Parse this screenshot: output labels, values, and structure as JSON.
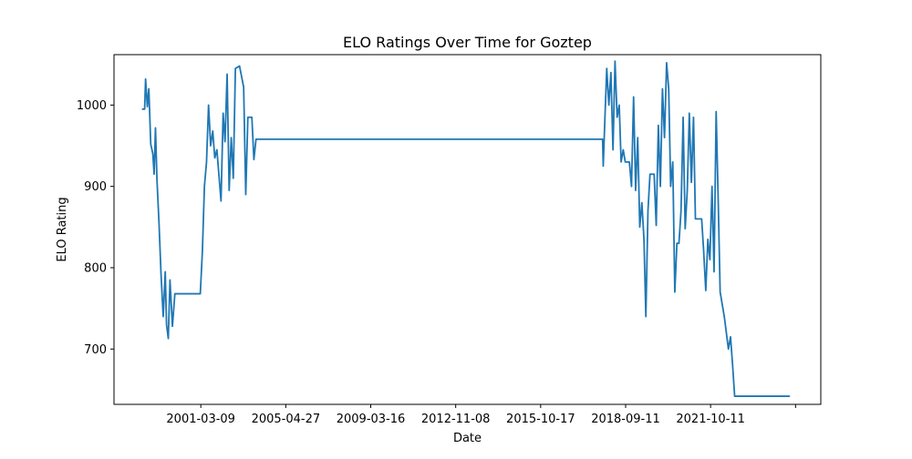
{
  "chart_data": {
    "type": "line",
    "title": "ELO Ratings Over Time for Goztep",
    "xlabel": "Date",
    "ylabel": "ELO Rating",
    "x_ticks": [
      "2001-03-09",
      "2005-04-27",
      "2009-03-16",
      "2012-11-08",
      "2015-10-17",
      "2018-09-11",
      "2021-10-11",
      ""
    ],
    "y_ticks": [
      "700",
      "800",
      "900",
      "1000"
    ],
    "xlim": [
      "1997-09-05",
      "2026-03-25"
    ],
    "ylim": [
      632,
      1062
    ],
    "grid": false,
    "series": [
      {
        "color": "#1f77b4",
        "points": [
          [
            "1998-11-01",
            995
          ],
          [
            "1998-12-01",
            995
          ],
          [
            "1998-12-15",
            1032
          ],
          [
            "1999-01-10",
            998
          ],
          [
            "1999-02-01",
            1020
          ],
          [
            "1999-03-01",
            952
          ],
          [
            "1999-04-01",
            940
          ],
          [
            "1999-04-20",
            915
          ],
          [
            "1999-05-10",
            972
          ],
          [
            "1999-06-01",
            908
          ],
          [
            "1999-07-01",
            855
          ],
          [
            "1999-08-01",
            790
          ],
          [
            "1999-09-01",
            740
          ],
          [
            "1999-10-01",
            795
          ],
          [
            "1999-10-20",
            730
          ],
          [
            "1999-11-15",
            713
          ],
          [
            "1999-12-10",
            785
          ],
          [
            "2000-01-15",
            728
          ],
          [
            "2000-02-20",
            768
          ],
          [
            "2001-01-01",
            768
          ],
          [
            "2001-03-01",
            768
          ],
          [
            "2001-04-01",
            820
          ],
          [
            "2001-05-01",
            900
          ],
          [
            "2001-06-01",
            930
          ],
          [
            "2001-07-01",
            1000
          ],
          [
            "2001-08-01",
            950
          ],
          [
            "2001-09-01",
            968
          ],
          [
            "2001-10-01",
            935
          ],
          [
            "2001-11-01",
            945
          ],
          [
            "2002-01-01",
            882
          ],
          [
            "2002-02-01",
            990
          ],
          [
            "2002-03-01",
            955
          ],
          [
            "2002-04-01",
            1038
          ],
          [
            "2002-05-01",
            895
          ],
          [
            "2002-06-01",
            960
          ],
          [
            "2002-07-01",
            910
          ],
          [
            "2002-08-01",
            1045
          ],
          [
            "2002-10-01",
            1048
          ],
          [
            "2002-12-01",
            1022
          ],
          [
            "2003-01-01",
            890
          ],
          [
            "2003-02-01",
            985
          ],
          [
            "2003-04-01",
            985
          ],
          [
            "2003-05-01",
            933
          ],
          [
            "2003-06-01",
            958
          ],
          [
            "2017-06-01",
            958
          ],
          [
            "2017-06-10",
            925
          ],
          [
            "2017-07-01",
            975
          ],
          [
            "2017-08-01",
            1045
          ],
          [
            "2017-09-01",
            1000
          ],
          [
            "2017-10-01",
            1040
          ],
          [
            "2017-11-01",
            945
          ],
          [
            "2017-12-01",
            1054
          ],
          [
            "2018-01-01",
            985
          ],
          [
            "2018-02-01",
            1000
          ],
          [
            "2018-03-01",
            930
          ],
          [
            "2018-04-01",
            945
          ],
          [
            "2018-05-01",
            930
          ],
          [
            "2018-06-01",
            930
          ],
          [
            "2018-07-01",
            930
          ],
          [
            "2018-08-01",
            900
          ],
          [
            "2018-09-01",
            1010
          ],
          [
            "2018-10-01",
            895
          ],
          [
            "2018-11-01",
            960
          ],
          [
            "2018-12-01",
            850
          ],
          [
            "2019-01-01",
            880
          ],
          [
            "2019-02-01",
            835
          ],
          [
            "2019-03-01",
            740
          ],
          [
            "2019-04-01",
            870
          ],
          [
            "2019-05-01",
            915
          ],
          [
            "2019-07-01",
            915
          ],
          [
            "2019-08-01",
            852
          ],
          [
            "2019-09-01",
            975
          ],
          [
            "2019-10-01",
            900
          ],
          [
            "2019-11-01",
            1020
          ],
          [
            "2019-12-01",
            960
          ],
          [
            "2020-01-01",
            1052
          ],
          [
            "2020-02-01",
            1020
          ],
          [
            "2020-03-01",
            900
          ],
          [
            "2020-04-01",
            930
          ],
          [
            "2020-05-01",
            770
          ],
          [
            "2020-06-01",
            830
          ],
          [
            "2020-07-01",
            830
          ],
          [
            "2020-08-01",
            870
          ],
          [
            "2020-09-01",
            985
          ],
          [
            "2020-10-01",
            848
          ],
          [
            "2020-11-01",
            895
          ],
          [
            "2020-12-01",
            990
          ],
          [
            "2021-01-01",
            905
          ],
          [
            "2021-02-01",
            985
          ],
          [
            "2021-03-01",
            860
          ],
          [
            "2021-05-01",
            860
          ],
          [
            "2021-06-01",
            860
          ],
          [
            "2021-07-01",
            820
          ],
          [
            "2021-08-01",
            772
          ],
          [
            "2021-09-01",
            835
          ],
          [
            "2021-10-01",
            810
          ],
          [
            "2021-11-01",
            900
          ],
          [
            "2021-12-01",
            795
          ],
          [
            "2022-01-01",
            992
          ],
          [
            "2022-02-01",
            880
          ],
          [
            "2022-03-01",
            770
          ],
          [
            "2022-05-01",
            740
          ],
          [
            "2022-07-01",
            700
          ],
          [
            "2022-08-01",
            715
          ],
          [
            "2022-09-01",
            680
          ],
          [
            "2022-10-01",
            642
          ],
          [
            "2024-12-15",
            642
          ]
        ]
      }
    ]
  }
}
